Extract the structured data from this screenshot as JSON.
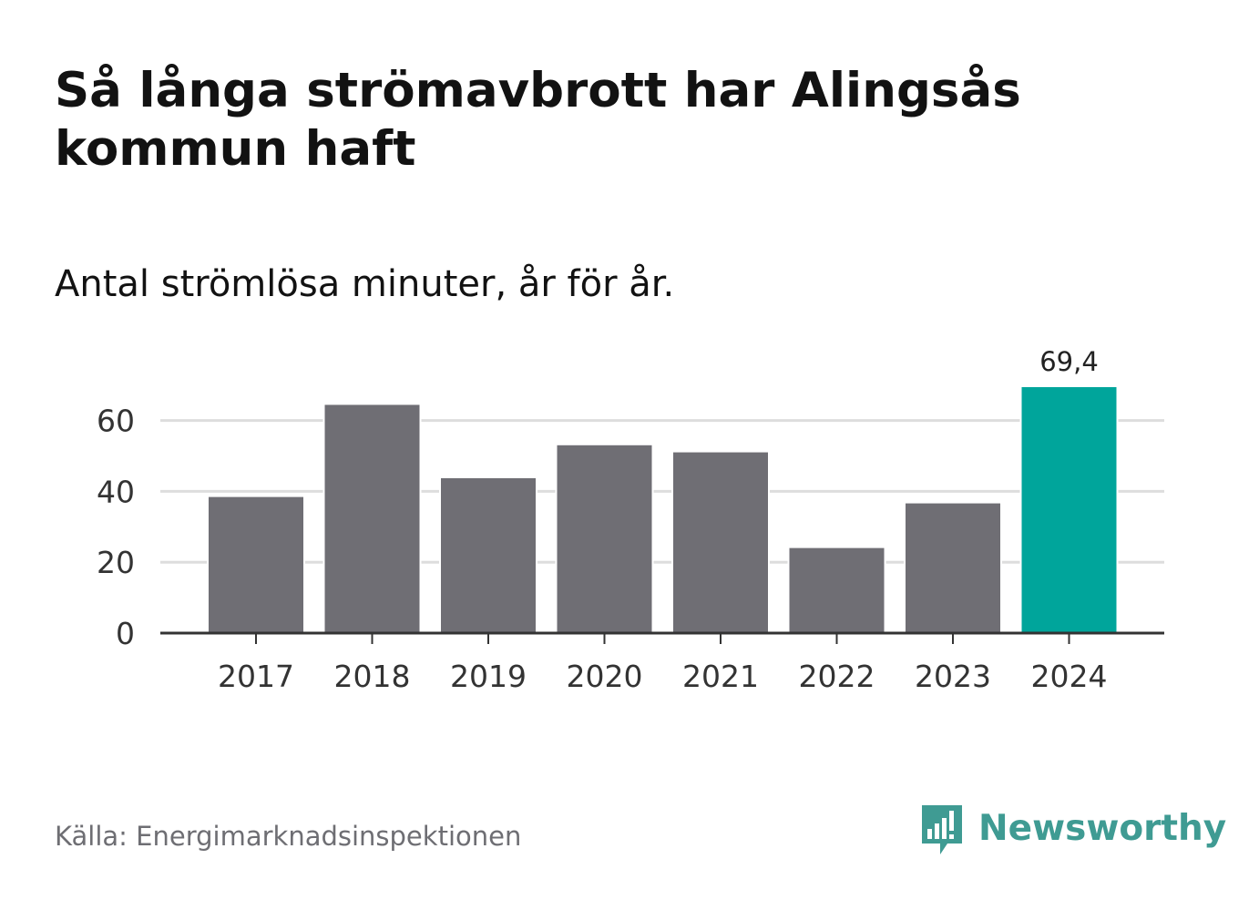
{
  "header": {
    "title": "Så långa strömavbrott har Alingsås kommun haft",
    "subtitle": "Antal strömlösa minuter, år för år."
  },
  "footer": {
    "source": "Källa: Energimarknadsinspektionen",
    "brand": "Newsworthy"
  },
  "colors": {
    "bar": "#6f6e74",
    "highlight": "#00a59b",
    "grid": "#dddddd",
    "axis": "#333333",
    "brand": "#3f9b93"
  },
  "chart_data": {
    "type": "bar",
    "title": "Så långa strömavbrott har Alingsås kommun haft",
    "subtitle": "Antal strömlösa minuter, år för år.",
    "xlabel": "",
    "ylabel": "",
    "categories": [
      "2017",
      "2018",
      "2019",
      "2020",
      "2021",
      "2022",
      "2023",
      "2024"
    ],
    "values": [
      38.4,
      64.4,
      43.7,
      53.0,
      51.0,
      24.0,
      36.6,
      69.4
    ],
    "highlight_index": 7,
    "data_labels": [
      {
        "index": 7,
        "text": "69,4"
      }
    ],
    "yticks": [
      0,
      20,
      40,
      60
    ],
    "ylim": [
      0,
      69.4
    ],
    "grid": true,
    "legend": "none"
  }
}
